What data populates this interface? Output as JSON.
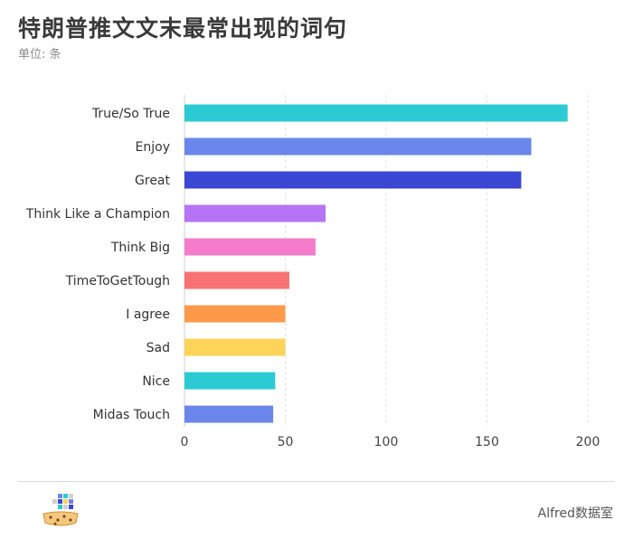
{
  "header": {
    "title": "特朗普推文文末最常出现的词句",
    "subtitle": "单位: 条"
  },
  "footer": {
    "brand": "Alfred数据室"
  },
  "chart_data": {
    "type": "bar",
    "orientation": "horizontal",
    "categories": [
      "True/So True",
      "Enjoy",
      "Great",
      "Think Like a Champion",
      "Think Big",
      "TimeToGetTough",
      "I agree",
      "Sad",
      "Nice",
      "Midas Touch"
    ],
    "values": [
      190,
      172,
      167,
      70,
      65,
      52,
      50,
      50,
      45,
      44
    ],
    "colors": [
      "#2ccbd3",
      "#6b86ea",
      "#3b46d3",
      "#b574f3",
      "#f57ccb",
      "#f77272",
      "#fc9a4a",
      "#fdd457",
      "#2ccbd3",
      "#6b86ea"
    ],
    "xlim": [
      0,
      200
    ],
    "xticks": [
      0,
      50,
      100,
      150,
      200
    ],
    "grid": true
  }
}
